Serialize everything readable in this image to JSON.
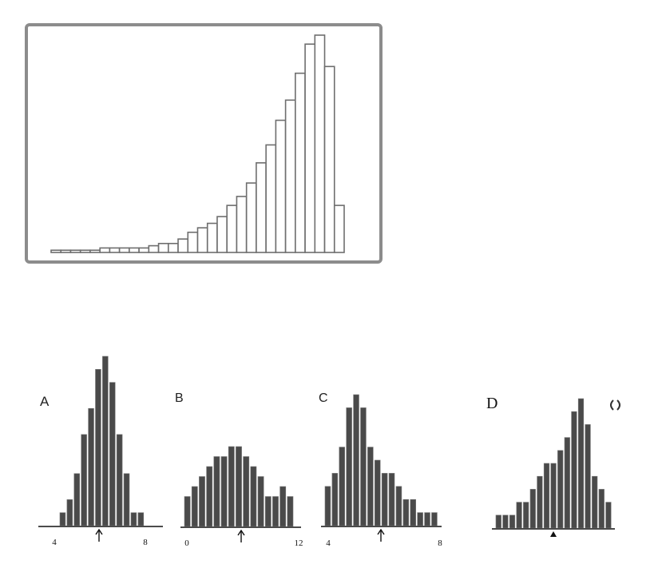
{
  "chart_data": [
    {
      "type": "bar",
      "values": [
        1,
        1,
        1,
        1,
        1,
        2,
        2,
        2,
        2,
        2,
        3,
        4,
        4,
        6,
        9,
        11,
        13,
        16,
        21,
        25,
        31,
        40,
        48,
        59,
        68,
        80,
        93,
        97,
        83,
        21
      ]
    },
    {
      "type": "bar",
      "panel_label": "A",
      "x_tick_labels": [
        "4",
        "8"
      ],
      "values": [
        1,
        2,
        4,
        7,
        9,
        12,
        13,
        11,
        7,
        4,
        1,
        1
      ],
      "marker": "arrow"
    },
    {
      "type": "bar",
      "panel_label": "B",
      "x_tick_labels": [
        "0",
        "12"
      ],
      "values": [
        3,
        4,
        5,
        6,
        7,
        7,
        8,
        8,
        7,
        6,
        5,
        3,
        3,
        4,
        3
      ],
      "marker": "arrow"
    },
    {
      "type": "bar",
      "panel_label": "C",
      "x_tick_labels": [
        "4",
        "8"
      ],
      "values": [
        3,
        4,
        6,
        9,
        10,
        9,
        6,
        5,
        4,
        4,
        3,
        2,
        2,
        1,
        1,
        1
      ],
      "marker": "arrow"
    },
    {
      "type": "bar",
      "panel_label": "D",
      "values": [
        1,
        1,
        1,
        2,
        2,
        3,
        4,
        5,
        5,
        6,
        7,
        9,
        10,
        8,
        4,
        3,
        2
      ],
      "marker": "arrow"
    }
  ]
}
